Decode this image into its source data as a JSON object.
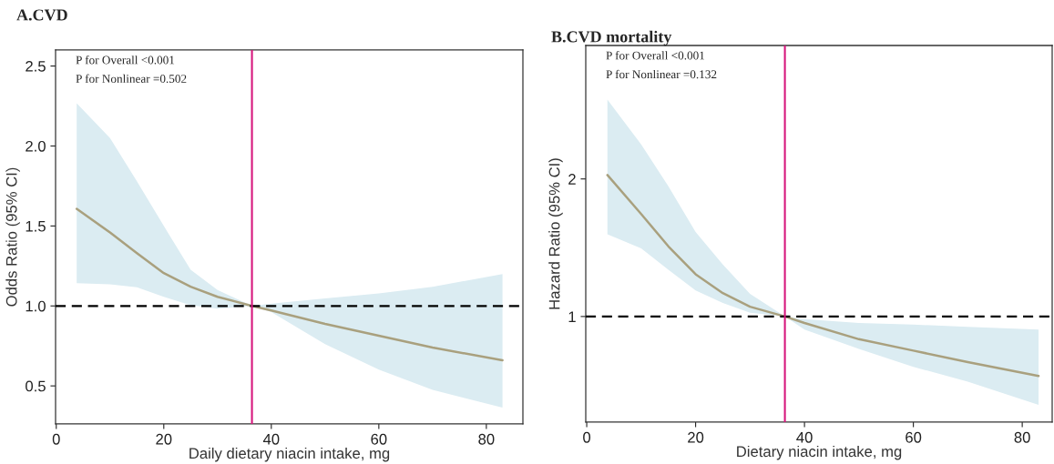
{
  "chart_data": [
    {
      "type": "line",
      "title": "A.CVD",
      "xlabel": "Daily dietary niacin intake, mg",
      "ylabel": "Odds Ratio (95% CI)",
      "x": [
        3.8,
        10,
        15,
        20,
        25,
        30,
        36.4,
        40,
        50,
        60,
        70,
        83
      ],
      "series": [
        {
          "color": "#a9a07e",
          "values": [
            1.607,
            1.459,
            1.33,
            1.205,
            1.12,
            1.057,
            1.0,
            0.972,
            0.888,
            0.814,
            0.74,
            0.66
          ],
          "lower": [
            1.142,
            1.135,
            1.116,
            1.057,
            1.004,
            0.983,
            1.0,
            0.962,
            0.761,
            0.602,
            0.475,
            0.365
          ],
          "upper": [
            2.267,
            2.05,
            1.78,
            1.5,
            1.226,
            1.1,
            1.0,
            1.015,
            1.047,
            1.078,
            1.12,
            1.199
          ]
        }
      ],
      "xlim": [
        -0.13,
        86.8
      ],
      "xticks": [
        0,
        20,
        40,
        60,
        80
      ],
      "ylim": [
        0.262,
        2.6
      ],
      "yticks": [
        0.5,
        {
          "value": 1,
          "label": "1.0"
        },
        1.5,
        {
          "value": 2,
          "label": "2.0"
        },
        2.5
      ],
      "ref_lines": [
        {
          "axis": "y",
          "value": 1.0,
          "color": "#000000",
          "line_style": "dashed"
        },
        {
          "axis": "x",
          "value": 36.4,
          "color": "#d6177d",
          "line_style": "solid"
        }
      ],
      "annotations": [
        "P for Overall <0.001",
        "P for Nonlinear =0.502"
      ],
      "grid": false,
      "legend": false
    },
    {
      "type": "line",
      "title": "B.CVD mortality",
      "xlabel": "Dietary niacin intake, mg",
      "ylabel": "Hazard Ratio (95% CI)",
      "x": [
        3.8,
        10,
        15,
        20,
        25,
        30,
        36.4,
        40,
        50,
        60,
        70,
        83
      ],
      "series": [
        {
          "color": "#a9a07e",
          "values": [
            2.028,
            1.745,
            1.51,
            1.307,
            1.17,
            1.071,
            1.0,
            0.953,
            0.835,
            0.752,
            0.669,
            0.567
          ],
          "lower": [
            1.598,
            1.496,
            1.34,
            1.189,
            1.099,
            1.028,
            1.0,
            0.905,
            0.764,
            0.634,
            0.527,
            0.357
          ],
          "upper": [
            2.577,
            2.25,
            1.946,
            1.615,
            1.378,
            1.165,
            1.0,
            0.981,
            0.953,
            0.941,
            0.924,
            0.905
          ]
        }
      ],
      "xlim": [
        -0.18,
        85.5
      ],
      "xticks": [
        0,
        20,
        40,
        60,
        80
      ],
      "ylim": [
        0.232,
        2.97
      ],
      "yticks": [
        1,
        2
      ],
      "ref_lines": [
        {
          "axis": "y",
          "value": 1,
          "color": "#000000",
          "line_style": "dashed"
        },
        {
          "axis": "x",
          "value": 36.4,
          "color": "#d6177d",
          "line_style": "solid"
        }
      ],
      "annotations": [
        "P for Overall <0.001",
        "P for Nonlinear =0.132"
      ],
      "grid": false,
      "legend": false
    }
  ]
}
